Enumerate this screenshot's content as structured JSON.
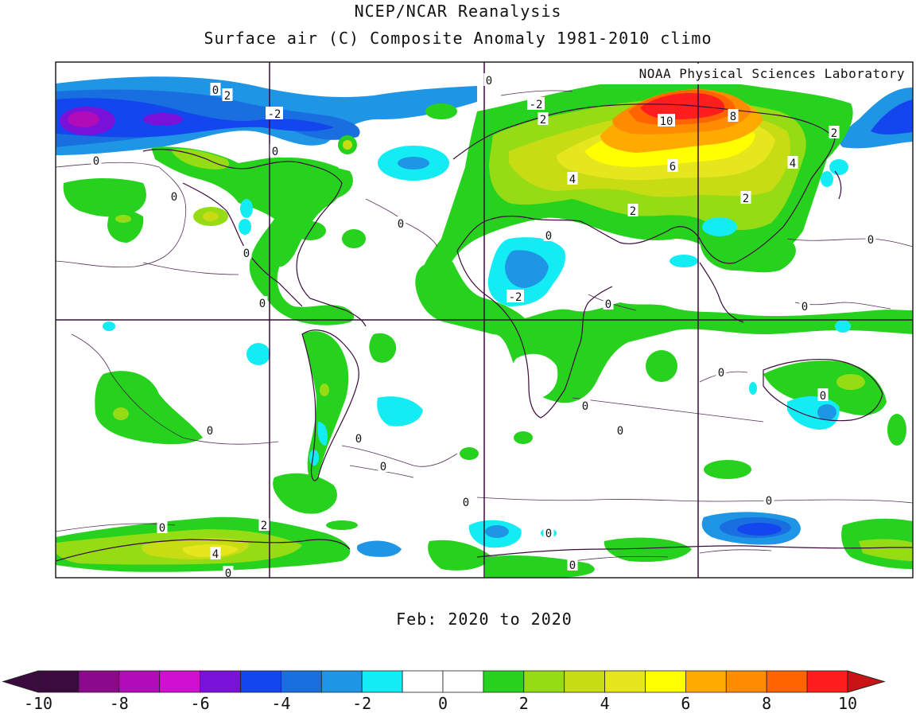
{
  "title_line1": "NCEP/NCAR Reanalysis",
  "title_line2": "Surface air (C) Composite Anomaly 1981-2010 climo",
  "credit": "NOAA Physical Sciences Laboratory",
  "period": "Feb: 2020 to 2020",
  "map": {
    "projection": "equirectangular",
    "graticule_lon": [
      0,
      90,
      180,
      270
    ],
    "graticule_lat": [
      0
    ],
    "contour_labels": [
      {
        "text": "0",
        "region": "north-pacific-arctic"
      },
      {
        "text": "2",
        "region": "alaska"
      },
      {
        "text": "-2",
        "region": "canada-arctic"
      },
      {
        "text": "0",
        "region": "hudson-bay"
      },
      {
        "text": "0",
        "region": "north-pacific"
      },
      {
        "text": "0",
        "region": "north-pacific-east"
      },
      {
        "text": "0",
        "region": "western-usa"
      },
      {
        "text": "0",
        "region": "mexico-pacific"
      },
      {
        "text": "0",
        "region": "north-atlantic"
      },
      {
        "text": "0",
        "region": "greenland-north"
      },
      {
        "text": "-2",
        "region": "scandinavia-north"
      },
      {
        "text": "2",
        "region": "scandinavia"
      },
      {
        "text": "10",
        "region": "siberia"
      },
      {
        "text": "8",
        "region": "siberia-east"
      },
      {
        "text": "6",
        "region": "central-siberia"
      },
      {
        "text": "4",
        "region": "russia"
      },
      {
        "text": "4",
        "region": "east-asia"
      },
      {
        "text": "2",
        "region": "kamchatka"
      },
      {
        "text": "2",
        "region": "central-asia"
      },
      {
        "text": "2",
        "region": "mongolia"
      },
      {
        "text": "0",
        "region": "sahara"
      },
      {
        "text": "-2",
        "region": "west-africa"
      },
      {
        "text": "0",
        "region": "arabian-sea"
      },
      {
        "text": "0",
        "region": "north-west-pacific"
      },
      {
        "text": "0",
        "region": "philippine-sea"
      },
      {
        "text": "0",
        "region": "equatorial-pacific"
      },
      {
        "text": "0",
        "region": "south-pacific"
      },
      {
        "text": "0",
        "region": "south-atlantic"
      },
      {
        "text": "0",
        "region": "south-atlantic-west"
      },
      {
        "text": "0",
        "region": "southern-ocean-atlantic"
      },
      {
        "text": "0",
        "region": "indian-ocean"
      },
      {
        "text": "0",
        "region": "south-indian-ocean"
      },
      {
        "text": "0",
        "region": "australia"
      },
      {
        "text": "0",
        "region": "southern-ocean-pacific"
      },
      {
        "text": "0",
        "region": "antarctica-pacific"
      },
      {
        "text": "2",
        "region": "antarctic-peninsula"
      },
      {
        "text": "4",
        "region": "west-antarctica"
      },
      {
        "text": "0",
        "region": "antarctica-indian"
      },
      {
        "text": "0",
        "region": "antarctica-east"
      },
      {
        "text": "0",
        "region": "south-of-australia"
      }
    ]
  },
  "colorbar": {
    "levels": [
      -10,
      -9,
      -8,
      -7,
      -6,
      -5,
      -4,
      -3,
      -2,
      -1,
      0,
      1,
      2,
      3,
      4,
      5,
      6,
      7,
      8,
      9,
      10
    ],
    "tick_labels": [
      "-10",
      "-8",
      "-6",
      "-4",
      "-2",
      "0",
      "2",
      "4",
      "6",
      "8",
      "10"
    ],
    "colors": [
      "#3b0a3e",
      "#8b0a8c",
      "#b10cb8",
      "#d00fd0",
      "#7a11d8",
      "#1446f0",
      "#1a6fe0",
      "#1f95e6",
      "#14ecf4",
      "#ffffff",
      "#ffffff",
      "#26d21e",
      "#96dc14",
      "#c8dc14",
      "#e6e61e",
      "#ffff00",
      "#ffaa00",
      "#ff8c00",
      "#ff6400",
      "#ff1e1e"
    ],
    "under_color": "#3b0a3e",
    "over_color": "#c81414"
  }
}
